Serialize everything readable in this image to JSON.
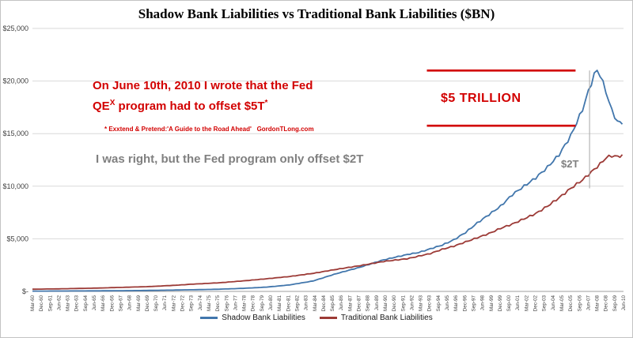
{
  "chart_data": {
    "type": "line",
    "title": "Shadow Bank Liabilities vs Traditional Bank Liabilities ($BN)",
    "ylim": [
      0,
      25000
    ],
    "grid": "horizontal",
    "legend_position": "bottom",
    "x_range_years": [
      1960,
      2010.5
    ],
    "y_ticks": [
      {
        "value": 0,
        "label": "$-"
      },
      {
        "value": 5000,
        "label": "$5,000"
      },
      {
        "value": 10000,
        "label": "$10,000"
      },
      {
        "value": 15000,
        "label": "$15,000"
      },
      {
        "value": 20000,
        "label": "$20,000"
      },
      {
        "value": 25000,
        "label": "$25,000"
      }
    ],
    "x_tick_labels": [
      "Mar-60",
      "Dec-60",
      "Sep-61",
      "Jun-62",
      "Mar-63",
      "Dec-63",
      "Sep-64",
      "Jun-65",
      "Mar-66",
      "Dec-66",
      "Sep-67",
      "Jun-68",
      "Mar-69",
      "Dec-69",
      "Sep-70",
      "Jun-71",
      "Mar-72",
      "Dec-72",
      "Sep-73",
      "Jun-74",
      "Mar-75",
      "Dec-75",
      "Sep-76",
      "Jun-77",
      "Mar-78",
      "Dec-78",
      "Sep-79",
      "Jun-80",
      "Mar-81",
      "Dec-81",
      "Sep-82",
      "Jun-83",
      "Mar-84",
      "Dec-84",
      "Sep-85",
      "Jun-86",
      "Mar-87",
      "Dec-87",
      "Sep-88",
      "Jun-89",
      "Mar-90",
      "Dec-90",
      "Sep-91",
      "Jun-92",
      "Mar-93",
      "Dec-93",
      "Sep-94",
      "Jun-95",
      "Mar-96",
      "Dec-96",
      "Sep-97",
      "Jun-98",
      "Mar-99",
      "Dec-99",
      "Sep-00",
      "Jun-01",
      "Mar-02",
      "Dec-02",
      "Sep-03",
      "Jun-04",
      "Mar-05",
      "Dec-05",
      "Sep-06",
      "Jun-07",
      "Mar-08",
      "Dec-08",
      "Sep-09",
      "Jun-10"
    ],
    "series": [
      {
        "name": "Shadow Bank Liabilities",
        "color": "#4176ac",
        "points": [
          [
            1960,
            29
          ],
          [
            1962,
            36
          ],
          [
            1964,
            45
          ],
          [
            1966,
            57
          ],
          [
            1968,
            73
          ],
          [
            1970,
            95
          ],
          [
            1972,
            125
          ],
          [
            1974,
            165
          ],
          [
            1976,
            210
          ],
          [
            1978,
            290
          ],
          [
            1980,
            410
          ],
          [
            1982,
            620
          ],
          [
            1984,
            1000
          ],
          [
            1986,
            1700
          ],
          [
            1988,
            2300
          ],
          [
            1990,
            3000
          ],
          [
            1992,
            3500
          ],
          [
            1993,
            3700
          ],
          [
            1994,
            4050
          ],
          [
            1995,
            4400
          ],
          [
            1996,
            4900
          ],
          [
            1997,
            5600
          ],
          [
            1998,
            6500
          ],
          [
            1999,
            7300
          ],
          [
            2000,
            8100
          ],
          [
            2001,
            9200
          ],
          [
            2002,
            10000
          ],
          [
            2003,
            10800
          ],
          [
            2004,
            11800
          ],
          [
            2005,
            13000
          ],
          [
            2006,
            14800
          ],
          [
            2007,
            17300
          ],
          [
            2007.5,
            19000
          ],
          [
            2008,
            20600
          ],
          [
            2008.25,
            21000
          ],
          [
            2008.5,
            20600
          ],
          [
            2009,
            19000
          ],
          [
            2009.5,
            17200
          ],
          [
            2010,
            16100
          ],
          [
            2010.4,
            15900
          ]
        ]
      },
      {
        "name": "Traditional Bank Liabilities",
        "color": "#9c3a36",
        "points": [
          [
            1960,
            210
          ],
          [
            1962,
            240
          ],
          [
            1964,
            280
          ],
          [
            1966,
            330
          ],
          [
            1968,
            395
          ],
          [
            1970,
            460
          ],
          [
            1972,
            570
          ],
          [
            1974,
            710
          ],
          [
            1976,
            820
          ],
          [
            1978,
            1000
          ],
          [
            1980,
            1200
          ],
          [
            1982,
            1420
          ],
          [
            1984,
            1720
          ],
          [
            1986,
            2100
          ],
          [
            1988,
            2450
          ],
          [
            1990,
            2850
          ],
          [
            1992,
            3100
          ],
          [
            1993,
            3350
          ],
          [
            1994,
            3600
          ],
          [
            1995,
            4000
          ],
          [
            1996,
            4300
          ],
          [
            1997,
            4700
          ],
          [
            1998,
            5100
          ],
          [
            1999,
            5500
          ],
          [
            2000,
            6000
          ],
          [
            2001,
            6400
          ],
          [
            2002,
            6900
          ],
          [
            2003,
            7400
          ],
          [
            2004,
            8100
          ],
          [
            2005,
            8900
          ],
          [
            2006,
            9800
          ],
          [
            2007,
            10600
          ],
          [
            2008,
            11600
          ],
          [
            2008.5,
            12100
          ],
          [
            2009,
            12700
          ],
          [
            2009.5,
            12900
          ],
          [
            2010,
            12800
          ],
          [
            2010.4,
            13000
          ]
        ]
      }
    ]
  },
  "annotations": {
    "red_note_line1": "On June 10th, 2010 I wrote that the Fed",
    "red_note_qe": "QE",
    "red_note_qe_sup": "X",
    "red_note_line2_rest": " program had to offset $5T",
    "red_note_star": "*",
    "footnote": "* Exxtend & Pretend:'A Guide to the Road Ahead'   GordonTLong.com",
    "gray_note": "I was right, but the Fed program only offset $2T",
    "five_trillion_label": "$5 TRILLION",
    "two_t_label": "$2T",
    "bracket": {
      "top_value": 21000,
      "bottom_value": 15750,
      "start_year": 1993.7,
      "end_year": 2006.4,
      "color": "#d20000"
    },
    "marker_line": {
      "year": 2007.6,
      "top_value": 21000,
      "bottom_value": 9800,
      "color": "#a6a6a6"
    }
  },
  "colors": {
    "annotation_red": "#d20000",
    "annotation_gray": "#808080",
    "gridline": "#d9d9d9",
    "axis_text": "#3f3f3f"
  }
}
